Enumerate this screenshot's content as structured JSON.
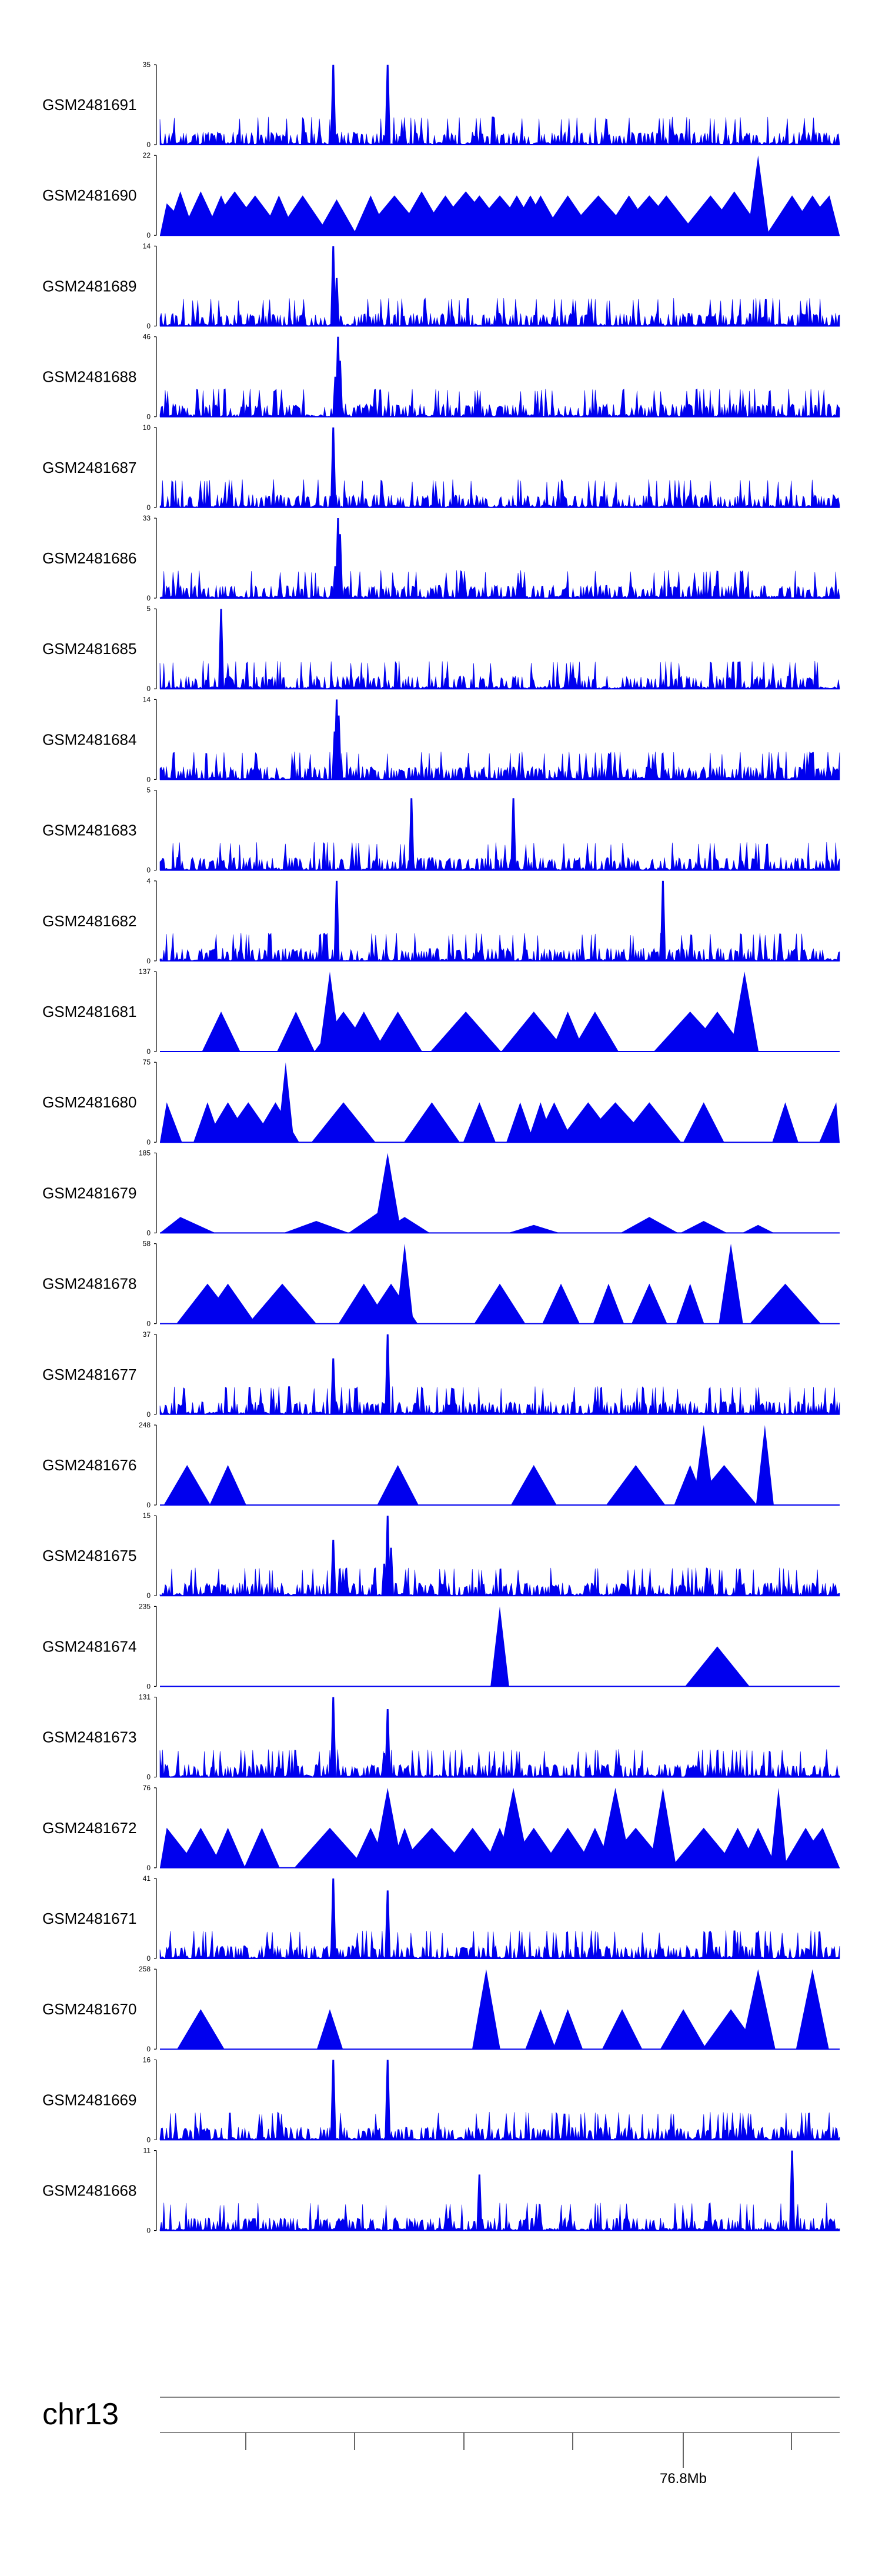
{
  "chart_data": {
    "type": "area",
    "title": "",
    "chromosome": "chr13",
    "genome_axis": {
      "marked_position_label": "76.8Mb"
    },
    "peak_color": "#0000ee",
    "tracks": [
      {
        "name": "GSM2481691",
        "ymax": 35,
        "style": "noise",
        "seed": 11,
        "spikes": [
          [
            0.255,
            1.0
          ],
          [
            0.335,
            1.0
          ]
        ]
      },
      {
        "name": "GSM2481690",
        "ymax": 22,
        "style": "triangles",
        "seed": 12,
        "peaks": [
          [
            0.01,
            0.4
          ],
          [
            0.03,
            0.55
          ],
          [
            0.06,
            0.55
          ],
          [
            0.09,
            0.5
          ],
          [
            0.11,
            0.55
          ],
          [
            0.14,
            0.5
          ],
          [
            0.175,
            0.5
          ],
          [
            0.21,
            0.5
          ],
          [
            0.26,
            0.45
          ],
          [
            0.31,
            0.5
          ],
          [
            0.345,
            0.5
          ],
          [
            0.385,
            0.55
          ],
          [
            0.42,
            0.5
          ],
          [
            0.45,
            0.55
          ],
          [
            0.47,
            0.5
          ],
          [
            0.5,
            0.5
          ],
          [
            0.525,
            0.5
          ],
          [
            0.545,
            0.5
          ],
          [
            0.56,
            0.5
          ],
          [
            0.6,
            0.5
          ],
          [
            0.645,
            0.5
          ],
          [
            0.69,
            0.5
          ],
          [
            0.72,
            0.5
          ],
          [
            0.745,
            0.5
          ],
          [
            0.81,
            0.5
          ],
          [
            0.845,
            0.55
          ],
          [
            0.88,
            1.0
          ],
          [
            0.93,
            0.5
          ],
          [
            0.96,
            0.5
          ],
          [
            0.985,
            0.5
          ]
        ]
      },
      {
        "name": "GSM2481689",
        "ymax": 14,
        "style": "noise",
        "seed": 13,
        "spikes": [
          [
            0.255,
            1.0
          ],
          [
            0.26,
            0.6
          ]
        ]
      },
      {
        "name": "GSM2481688",
        "ymax": 46,
        "style": "noise",
        "seed": 14,
        "spikes": [
          [
            0.262,
            1.0
          ],
          [
            0.265,
            0.7
          ],
          [
            0.258,
            0.5
          ]
        ]
      },
      {
        "name": "GSM2481687",
        "ymax": 10,
        "style": "noise",
        "seed": 15,
        "spikes": [
          [
            0.255,
            1.0
          ]
        ]
      },
      {
        "name": "GSM2481686",
        "ymax": 33,
        "style": "noise",
        "seed": 16,
        "spikes": [
          [
            0.262,
            1.0
          ],
          [
            0.265,
            0.8
          ],
          [
            0.258,
            0.4
          ]
        ]
      },
      {
        "name": "GSM2481685",
        "ymax": 5,
        "style": "noise",
        "seed": 17,
        "spikes": [
          [
            0.09,
            1.0
          ]
        ]
      },
      {
        "name": "GSM2481684",
        "ymax": 14,
        "style": "noise",
        "seed": 18,
        "spikes": [
          [
            0.26,
            1.0
          ],
          [
            0.263,
            0.8
          ],
          [
            0.257,
            0.6
          ]
        ]
      },
      {
        "name": "GSM2481683",
        "ymax": 5,
        "style": "noise",
        "seed": 19,
        "spikes": [
          [
            0.37,
            0.9
          ],
          [
            0.52,
            0.9
          ]
        ]
      },
      {
        "name": "GSM2481682",
        "ymax": 4,
        "style": "noise",
        "seed": 20,
        "spikes": [
          [
            0.26,
            1.0
          ],
          [
            0.74,
            1.0
          ]
        ]
      },
      {
        "name": "GSM2481681",
        "ymax": 137,
        "style": "triangles",
        "seed": 21,
        "peaks": [
          [
            0.09,
            0.5
          ],
          [
            0.2,
            0.5
          ],
          [
            0.25,
            1.0
          ],
          [
            0.27,
            0.5
          ],
          [
            0.3,
            0.5
          ],
          [
            0.35,
            0.5
          ],
          [
            0.45,
            0.5
          ],
          [
            0.55,
            0.5
          ],
          [
            0.6,
            0.5
          ],
          [
            0.64,
            0.5
          ],
          [
            0.78,
            0.5
          ],
          [
            0.82,
            0.5
          ],
          [
            0.86,
            1.0
          ]
        ]
      },
      {
        "name": "GSM2481680",
        "ymax": 75,
        "style": "triangles",
        "seed": 22,
        "peaks": [
          [
            0.01,
            0.5
          ],
          [
            0.07,
            0.5
          ],
          [
            0.1,
            0.5
          ],
          [
            0.13,
            0.5
          ],
          [
            0.17,
            0.5
          ],
          [
            0.185,
            1.0
          ],
          [
            0.27,
            0.5
          ],
          [
            0.4,
            0.5
          ],
          [
            0.47,
            0.5
          ],
          [
            0.53,
            0.5
          ],
          [
            0.56,
            0.5
          ],
          [
            0.58,
            0.5
          ],
          [
            0.63,
            0.5
          ],
          [
            0.67,
            0.5
          ],
          [
            0.72,
            0.5
          ],
          [
            0.8,
            0.5
          ],
          [
            0.92,
            0.5
          ],
          [
            0.995,
            0.5
          ]
        ]
      },
      {
        "name": "GSM2481679",
        "ymax": 185,
        "style": "triangles",
        "seed": 23,
        "peaks": [
          [
            0.03,
            0.2
          ],
          [
            0.23,
            0.15
          ],
          [
            0.32,
            0.25
          ],
          [
            0.335,
            1.0
          ],
          [
            0.36,
            0.2
          ],
          [
            0.55,
            0.1
          ],
          [
            0.72,
            0.2
          ],
          [
            0.8,
            0.15
          ],
          [
            0.88,
            0.1
          ]
        ]
      },
      {
        "name": "GSM2481678",
        "ymax": 58,
        "style": "triangles",
        "seed": 24,
        "peaks": [
          [
            0.07,
            0.5
          ],
          [
            0.1,
            0.5
          ],
          [
            0.18,
            0.5
          ],
          [
            0.3,
            0.5
          ],
          [
            0.34,
            0.5
          ],
          [
            0.36,
            1.0
          ],
          [
            0.5,
            0.5
          ],
          [
            0.59,
            0.5
          ],
          [
            0.66,
            0.5
          ],
          [
            0.72,
            0.5
          ],
          [
            0.78,
            0.5
          ],
          [
            0.84,
            1.0
          ],
          [
            0.92,
            0.5
          ]
        ]
      },
      {
        "name": "GSM2481677",
        "ymax": 37,
        "style": "noise",
        "seed": 25,
        "spikes": [
          [
            0.255,
            0.7
          ],
          [
            0.335,
            1.0
          ],
          [
            0.19,
            0.35
          ]
        ]
      },
      {
        "name": "GSM2481676",
        "ymax": 248,
        "style": "triangles",
        "seed": 26,
        "peaks": [
          [
            0.04,
            0.5
          ],
          [
            0.1,
            0.5
          ],
          [
            0.35,
            0.5
          ],
          [
            0.55,
            0.5
          ],
          [
            0.7,
            0.5
          ],
          [
            0.78,
            0.5
          ],
          [
            0.8,
            1.0
          ],
          [
            0.83,
            0.5
          ],
          [
            0.89,
            1.0
          ]
        ]
      },
      {
        "name": "GSM2481675",
        "ymax": 15,
        "style": "noise",
        "seed": 27,
        "spikes": [
          [
            0.255,
            0.7
          ],
          [
            0.335,
            1.0
          ],
          [
            0.34,
            0.6
          ],
          [
            0.33,
            0.4
          ]
        ]
      },
      {
        "name": "GSM2481674",
        "ymax": 235,
        "style": "triangles",
        "seed": 28,
        "peaks": [
          [
            0.5,
            1.0
          ],
          [
            0.82,
            0.5
          ]
        ]
      },
      {
        "name": "GSM2481673",
        "ymax": 131,
        "style": "noise",
        "seed": 29,
        "spikes": [
          [
            0.255,
            1.0
          ],
          [
            0.335,
            0.85
          ],
          [
            0.33,
            0.3
          ]
        ]
      },
      {
        "name": "GSM2481672",
        "ymax": 76,
        "style": "triangles",
        "seed": 30,
        "peaks": [
          [
            0.01,
            0.5
          ],
          [
            0.06,
            0.5
          ],
          [
            0.1,
            0.5
          ],
          [
            0.15,
            0.5
          ],
          [
            0.25,
            0.5
          ],
          [
            0.31,
            0.5
          ],
          [
            0.335,
            1.0
          ],
          [
            0.36,
            0.5
          ],
          [
            0.4,
            0.5
          ],
          [
            0.46,
            0.5
          ],
          [
            0.5,
            0.5
          ],
          [
            0.52,
            1.0
          ],
          [
            0.55,
            0.5
          ],
          [
            0.6,
            0.5
          ],
          [
            0.64,
            0.5
          ],
          [
            0.67,
            1.0
          ],
          [
            0.7,
            0.5
          ],
          [
            0.74,
            1.0
          ],
          [
            0.8,
            0.5
          ],
          [
            0.85,
            0.5
          ],
          [
            0.88,
            0.5
          ],
          [
            0.91,
            1.0
          ],
          [
            0.95,
            0.5
          ],
          [
            0.975,
            0.5
          ]
        ]
      },
      {
        "name": "GSM2481671",
        "ymax": 41,
        "style": "noise",
        "seed": 31,
        "spikes": [
          [
            0.255,
            1.0
          ],
          [
            0.335,
            0.85
          ]
        ]
      },
      {
        "name": "GSM2481670",
        "ymax": 258,
        "style": "triangles",
        "seed": 32,
        "peaks": [
          [
            0.06,
            0.5
          ],
          [
            0.25,
            0.5
          ],
          [
            0.48,
            1.0
          ],
          [
            0.56,
            0.5
          ],
          [
            0.6,
            0.5
          ],
          [
            0.68,
            0.5
          ],
          [
            0.77,
            0.5
          ],
          [
            0.84,
            0.5
          ],
          [
            0.88,
            1.0
          ],
          [
            0.96,
            1.0
          ]
        ]
      },
      {
        "name": "GSM2481669",
        "ymax": 16,
        "style": "noise",
        "seed": 33,
        "spikes": [
          [
            0.255,
            1.0
          ],
          [
            0.335,
            1.0
          ]
        ]
      },
      {
        "name": "GSM2481668",
        "ymax": 11,
        "style": "noise",
        "seed": 34,
        "spikes": [
          [
            0.93,
            1.0
          ],
          [
            0.47,
            0.7
          ]
        ]
      }
    ]
  }
}
